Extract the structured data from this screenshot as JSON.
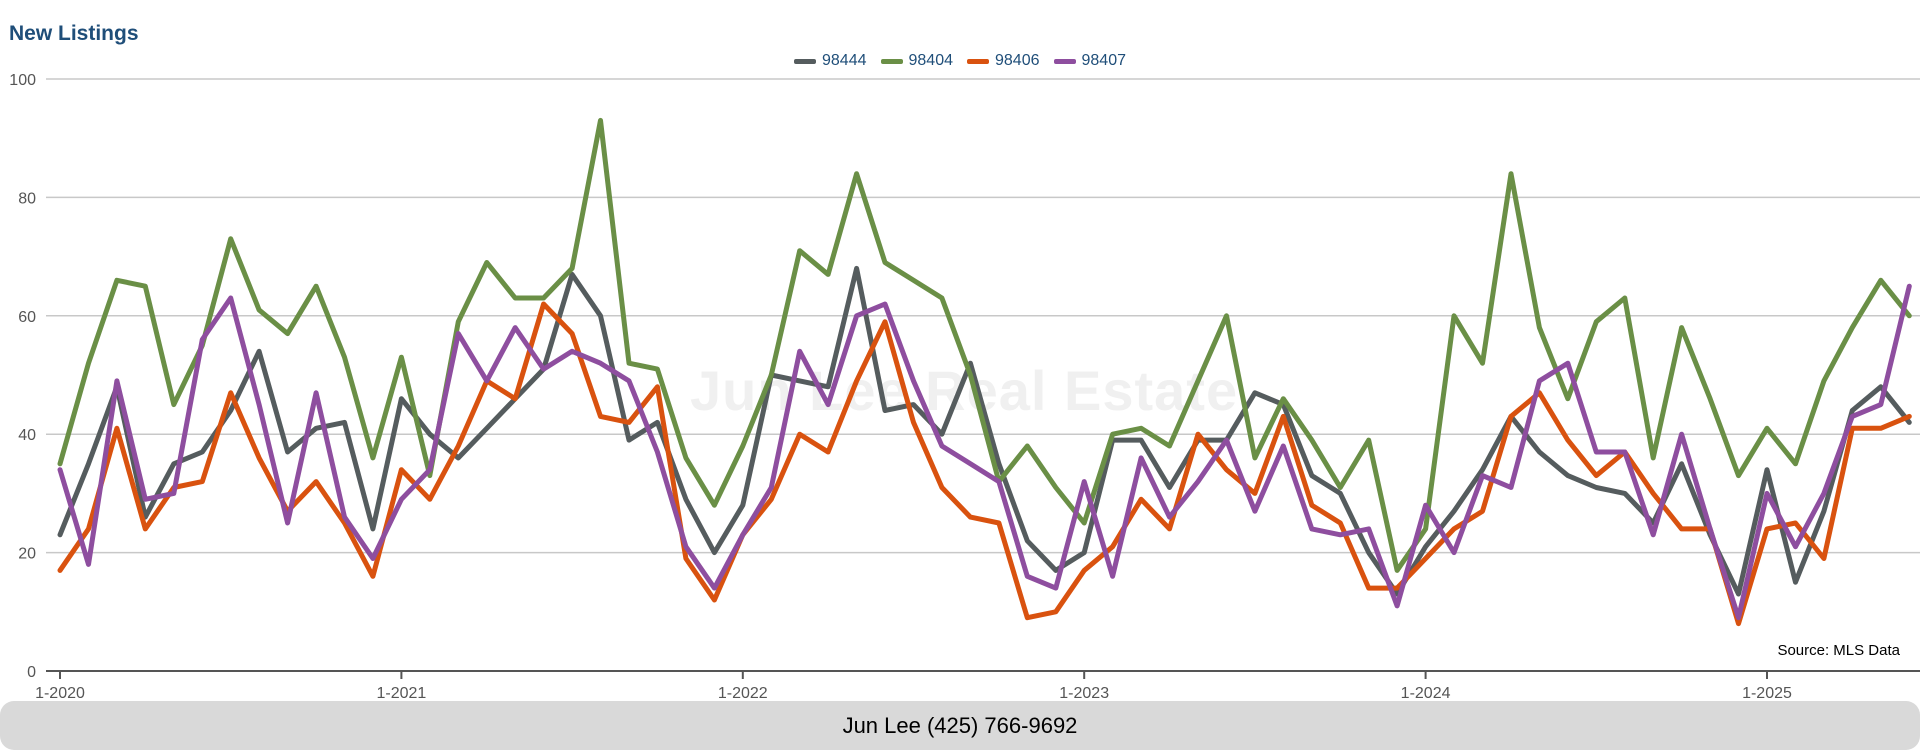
{
  "watermark": "Jun Lee Real Estate",
  "footer_text": "Jun Lee (425) 766-9692",
  "source_note": "Source: MLS Data",
  "chart_data": {
    "type": "line",
    "title": "New Listings",
    "xlabel": "",
    "ylabel": "",
    "ylim": [
      0,
      100
    ],
    "yticks": [
      0,
      20,
      40,
      60,
      80,
      100
    ],
    "xtick_labels": [
      "1-2020",
      "1-2021",
      "1-2022",
      "1-2023",
      "1-2024",
      "1-2025"
    ],
    "start_month": "1-2020",
    "grid": true,
    "legend_position": "top-center",
    "series": [
      {
        "name": "98444",
        "color": "#555c5e",
        "values": [
          23,
          35,
          48,
          26,
          35,
          37,
          44,
          54,
          37,
          41,
          42,
          24,
          46,
          40,
          36,
          41,
          46,
          51,
          67,
          60,
          39,
          42,
          29,
          20,
          28,
          50,
          49,
          48,
          68,
          44,
          45,
          40,
          52,
          35,
          22,
          17,
          20,
          39,
          39,
          31,
          39,
          39,
          47,
          45,
          33,
          30,
          20,
          13,
          21,
          27,
          34,
          43,
          37,
          33,
          31,
          30,
          25,
          35,
          23,
          13,
          34,
          15,
          27,
          44,
          48,
          42
        ]
      },
      {
        "name": "98404",
        "color": "#6a8f46",
        "values": [
          35,
          52,
          66,
          65,
          45,
          55,
          73,
          61,
          57,
          65,
          53,
          36,
          53,
          33,
          59,
          69,
          63,
          63,
          68,
          93,
          52,
          51,
          36,
          28,
          38,
          50,
          71,
          67,
          84,
          69,
          66,
          63,
          50,
          32,
          38,
          31,
          25,
          40,
          41,
          38,
          49,
          60,
          36,
          46,
          39,
          31,
          39,
          17,
          24,
          60,
          52,
          84,
          58,
          46,
          59,
          63,
          36,
          58,
          46,
          33,
          41,
          35,
          49,
          58,
          66,
          60
        ]
      },
      {
        "name": "98406",
        "color": "#d9520f",
        "values": [
          17,
          24,
          41,
          24,
          31,
          32,
          47,
          36,
          27,
          32,
          25,
          16,
          34,
          29,
          38,
          49,
          46,
          62,
          57,
          43,
          42,
          48,
          19,
          12,
          23,
          29,
          40,
          37,
          49,
          59,
          42,
          31,
          26,
          25,
          9,
          10,
          17,
          21,
          29,
          24,
          40,
          34,
          30,
          43,
          28,
          25,
          14,
          14,
          19,
          24,
          27,
          43,
          47,
          39,
          33,
          37,
          30,
          24,
          24,
          8,
          24,
          25,
          19,
          41,
          41,
          43
        ]
      },
      {
        "name": "98407",
        "color": "#8e4e9f",
        "values": [
          34,
          18,
          49,
          29,
          30,
          56,
          63,
          45,
          25,
          47,
          26,
          19,
          29,
          34,
          57,
          49,
          58,
          51,
          54,
          52,
          49,
          37,
          21,
          14,
          23,
          31,
          54,
          45,
          60,
          62,
          49,
          38,
          35,
          32,
          16,
          14,
          32,
          16,
          36,
          26,
          32,
          39,
          27,
          38,
          24,
          23,
          24,
          11,
          28,
          20,
          33,
          31,
          49,
          52,
          37,
          37,
          23,
          40,
          24,
          9,
          30,
          21,
          30,
          43,
          45,
          65
        ]
      }
    ]
  }
}
